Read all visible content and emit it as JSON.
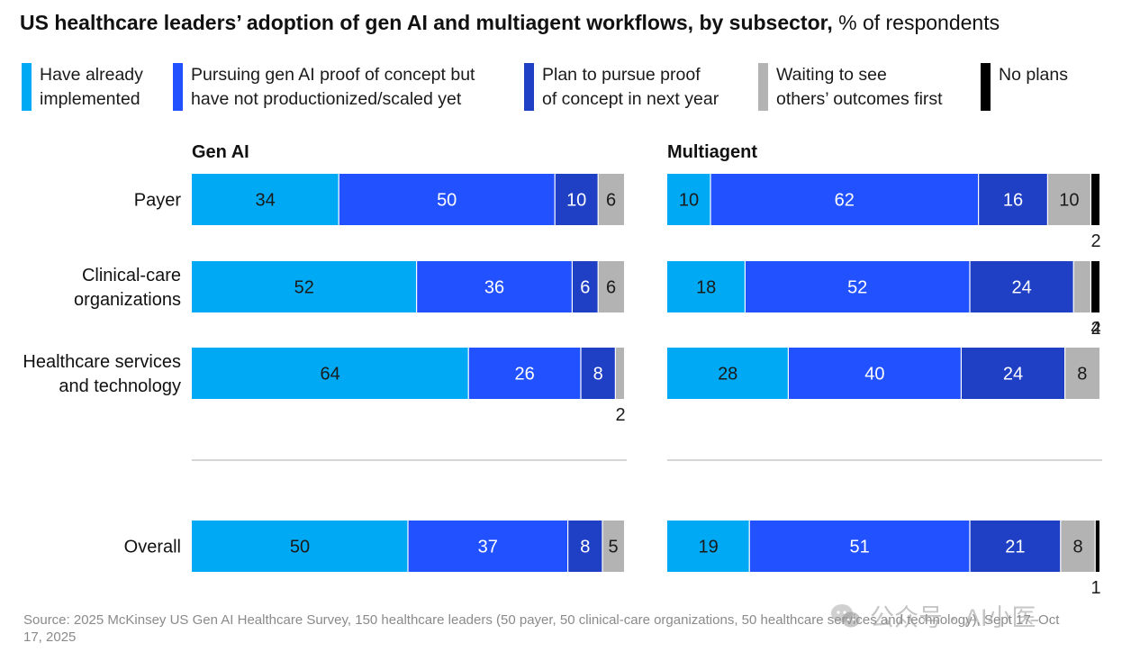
{
  "title": {
    "bold": "US healthcare leaders’ adoption of gen AI and multiagent workflows, by subsector,",
    "regular": " % of respondents"
  },
  "legend": [
    {
      "label": "Have already\nimplemented",
      "color": "#00a9f4"
    },
    {
      "label": "Pursuing gen AI proof of concept but\nhave not productionized/scaled yet",
      "color": "#2251ff"
    },
    {
      "label": "Plan to pursue proof\nof concept in next year",
      "color": "#1f40c5"
    },
    {
      "label": "Waiting to see\nothers’ outcomes first",
      "color": "#b3b3b3"
    },
    {
      "label": "No plans",
      "color": "#000000"
    }
  ],
  "chart_data": [
    {
      "type": "bar",
      "orientation": "horizontal",
      "stacked": true,
      "title": "Gen AI",
      "categories": [
        "Payer",
        "Clinical-care\norganizations",
        "Healthcare services\nand technology",
        "Overall"
      ],
      "series": [
        {
          "name": "Have already implemented",
          "values": [
            34,
            52,
            64,
            50
          ]
        },
        {
          "name": "Pursuing gen AI proof of concept but have not productionized/scaled yet",
          "values": [
            50,
            36,
            26,
            37
          ]
        },
        {
          "name": "Plan to pursue proof of concept in next year",
          "values": [
            10,
            6,
            8,
            8
          ]
        },
        {
          "name": "Waiting to see others’ outcomes first",
          "values": [
            6,
            6,
            2,
            5
          ]
        },
        {
          "name": "No plans",
          "values": [
            0,
            0,
            0,
            0
          ]
        }
      ],
      "xlim": [
        0,
        100
      ]
    },
    {
      "type": "bar",
      "orientation": "horizontal",
      "stacked": true,
      "title": "Multiagent",
      "categories": [
        "Payer",
        "Clinical-care\norganizations",
        "Healthcare services\nand technology",
        "Overall"
      ],
      "series": [
        {
          "name": "Have already implemented",
          "values": [
            10,
            18,
            28,
            19
          ]
        },
        {
          "name": "Pursuing gen AI proof of concept but have not productionized/scaled yet",
          "values": [
            62,
            52,
            40,
            51
          ]
        },
        {
          "name": "Plan to pursue proof of concept in next year",
          "values": [
            16,
            24,
            24,
            21
          ]
        },
        {
          "name": "Waiting to see others’ outcomes first",
          "values": [
            10,
            4,
            8,
            8
          ]
        },
        {
          "name": "No plans",
          "values": [
            2,
            2,
            0,
            1
          ]
        }
      ],
      "xlim": [
        0,
        100
      ]
    }
  ],
  "source": "Source: 2025 McKinsey US Gen AI Healthcare Survey, 150 healthcare leaders (50 payer, 50 clinical-care organizations, 50 healthcare services and technology), Sept 17–Oct 17, 2025",
  "watermark": "公众号 · AI小医"
}
